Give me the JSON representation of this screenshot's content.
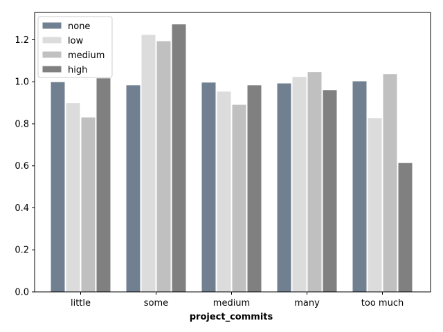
{
  "chart_data": {
    "type": "bar",
    "title": "",
    "xlabel": "project_commits",
    "ylabel": "",
    "categories": [
      "little",
      "some",
      "medium",
      "many",
      "too much"
    ],
    "series": [
      {
        "name": "none",
        "color": "#708090",
        "values": [
          1.0,
          0.985,
          0.998,
          0.994,
          1.004
        ]
      },
      {
        "name": "low",
        "color": "#dcdcdc",
        "values": [
          0.9,
          1.225,
          0.955,
          1.025,
          0.828
        ]
      },
      {
        "name": "medium",
        "color": "#c0c0c0",
        "values": [
          0.832,
          1.195,
          0.892,
          1.048,
          1.038
        ]
      },
      {
        "name": "high",
        "color": "#808080",
        "values": [
          1.018,
          1.275,
          0.985,
          0.962,
          0.615
        ]
      }
    ],
    "ylim": [
      0,
      1.33
    ],
    "yticks": [
      "0.0",
      "0.2",
      "0.4",
      "0.6",
      "0.8",
      "1.0",
      "1.2"
    ],
    "grid": false,
    "legend_position": "top-left"
  }
}
